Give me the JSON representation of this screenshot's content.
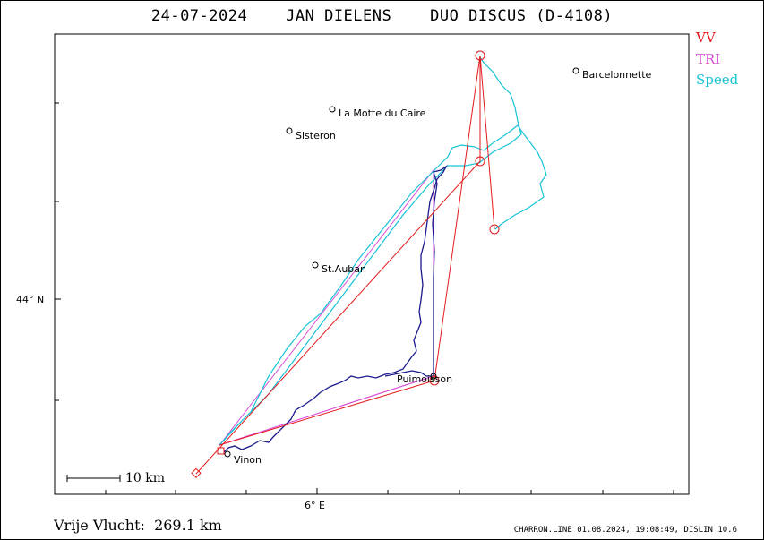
{
  "title": "24-07-2024    JAN DIELENS    DUO DISCUS (D-4108)",
  "legend": [
    {
      "label": "VV",
      "color": "#e31a1c"
    },
    {
      "label": "TRI",
      "color": "#d94fd9"
    },
    {
      "label": "Speed",
      "color": "#17c3d6"
    }
  ],
  "axes": {
    "lat_label": "44° N",
    "lon_label": "6° E"
  },
  "scale_label": "10 km",
  "footer": {
    "distance": "Vrije Vlucht:  269.1 km",
    "info": "CHARRON.LINE 01.08.2024, 19:08:49, DISLIN 10.6"
  },
  "towns": [
    {
      "name": "Barcelonnette"
    },
    {
      "name": "La Motte du Caire"
    },
    {
      "name": "Sisteron"
    },
    {
      "name": "St.Auban"
    },
    {
      "name": "Puimoisson"
    },
    {
      "name": "Vinon"
    }
  ]
}
